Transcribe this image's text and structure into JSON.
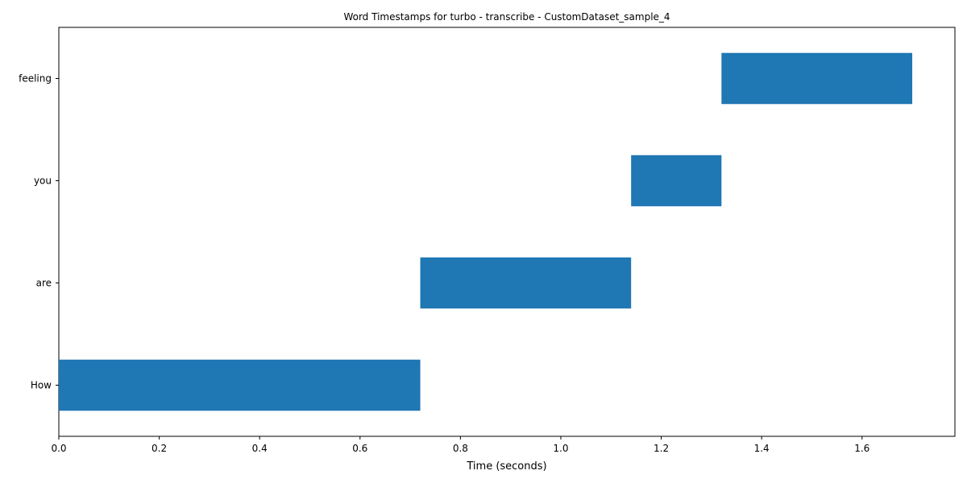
{
  "chart_data": {
    "type": "bar",
    "orientation": "horizontal",
    "title": "Word Timestamps for turbo - transcribe - CustomDataset_sample_4",
    "xlabel": "Time (seconds)",
    "ylabel": "",
    "categories": [
      "How",
      "are",
      "you",
      "feeling"
    ],
    "starts": [
      0.0,
      0.72,
      1.14,
      1.32
    ],
    "ends": [
      0.72,
      1.14,
      1.32,
      1.7
    ],
    "xlim": [
      0.0,
      1.785
    ],
    "xticks": [
      0.0,
      0.2,
      0.4,
      0.6,
      0.8,
      1.0,
      1.2,
      1.4,
      1.6
    ],
    "xtick_labels": [
      "0.0",
      "0.2",
      "0.4",
      "0.6",
      "0.8",
      "1.0",
      "1.2",
      "1.4",
      "1.6"
    ],
    "grid": false,
    "bar_color": "#1f77b4"
  }
}
